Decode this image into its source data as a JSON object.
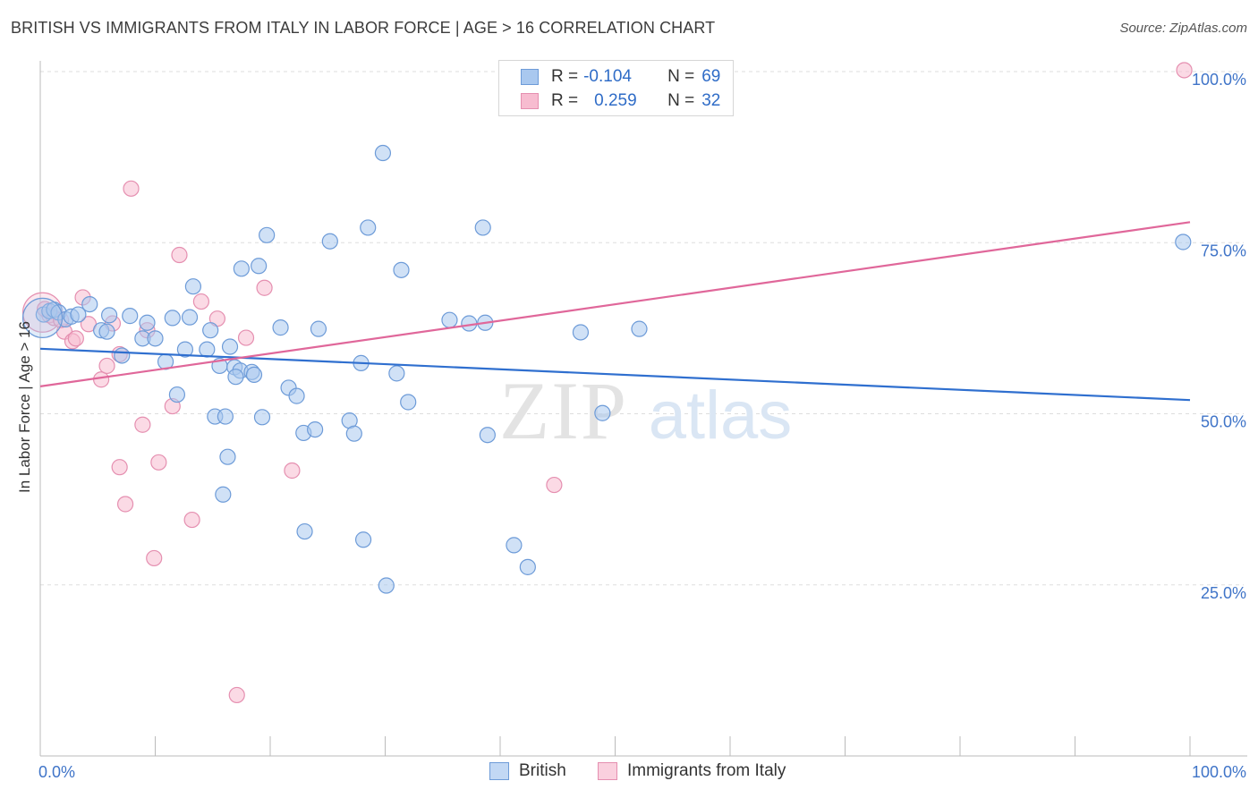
{
  "title": "BRITISH VS IMMIGRANTS FROM ITALY IN LABOR FORCE | AGE > 16 CORRELATION CHART",
  "source": "Source: ZipAtlas.com",
  "watermark": {
    "zip": "ZIP",
    "atlas": "atlas"
  },
  "colors": {
    "blue_fill": "#a9c8ef",
    "blue_stroke": "#6d9bd8",
    "blue_line": "#2f6fcf",
    "pink_fill": "#f7bcd0",
    "pink_stroke": "#e58fb0",
    "pink_line": "#e0679a",
    "tick_label": "#3f74c8",
    "grid": "#dddddd"
  },
  "legend": {
    "rows": [
      {
        "r_label": "R =",
        "r_value": "-0.104",
        "n_label": "N =",
        "n_value": "69"
      },
      {
        "r_label": "R =",
        "r_value": "0.259",
        "n_label": "N =",
        "n_value": "32"
      }
    ]
  },
  "chart_data": {
    "type": "scatter",
    "ylabel": "In Labor Force | Age > 16",
    "xlim": [
      0,
      100
    ],
    "ylim": [
      0,
      100
    ],
    "x_tick_labels": [
      "0.0%",
      "100.0%"
    ],
    "y_ticks": [
      25,
      50,
      75,
      100
    ],
    "y_tick_labels": [
      "25.0%",
      "50.0%",
      "75.0%",
      "100.0%"
    ],
    "series": [
      {
        "name": "British",
        "color": "#a9c8ef",
        "trend": {
          "x": [
            0,
            100
          ],
          "y": [
            59.5,
            52.0
          ]
        },
        "points": [
          [
            0.3,
            64.5
          ],
          [
            0.8,
            65.0
          ],
          [
            1.2,
            65.2
          ],
          [
            1.6,
            64.8
          ],
          [
            2.2,
            63.8
          ],
          [
            2.7,
            64.2
          ],
          [
            3.3,
            64.5
          ],
          [
            4.3,
            66.0
          ],
          [
            5.3,
            62.2
          ],
          [
            5.8,
            62.0
          ],
          [
            6.0,
            64.4
          ],
          [
            7.1,
            58.5
          ],
          [
            7.8,
            64.3
          ],
          [
            8.9,
            61.0
          ],
          [
            9.3,
            63.3
          ],
          [
            10.0,
            61.0
          ],
          [
            10.9,
            57.6
          ],
          [
            11.5,
            64.0
          ],
          [
            11.9,
            52.8
          ],
          [
            12.6,
            59.4
          ],
          [
            13.0,
            64.1
          ],
          [
            13.3,
            68.6
          ],
          [
            14.5,
            59.4
          ],
          [
            14.8,
            62.2
          ],
          [
            15.2,
            49.6
          ],
          [
            15.6,
            57.0
          ],
          [
            16.5,
            59.8
          ],
          [
            16.9,
            56.8
          ],
          [
            17.4,
            56.3
          ],
          [
            15.9,
            38.2
          ],
          [
            16.3,
            43.7
          ],
          [
            16.1,
            49.6
          ],
          [
            17.0,
            55.4
          ],
          [
            17.5,
            71.2
          ],
          [
            18.4,
            56.1
          ],
          [
            18.6,
            55.7
          ],
          [
            19.0,
            71.6
          ],
          [
            19.3,
            49.5
          ],
          [
            19.7,
            76.1
          ],
          [
            20.9,
            62.6
          ],
          [
            21.6,
            53.8
          ],
          [
            22.3,
            52.6
          ],
          [
            22.9,
            47.2
          ],
          [
            23.0,
            32.8
          ],
          [
            23.9,
            47.7
          ],
          [
            24.2,
            62.4
          ],
          [
            25.2,
            75.2
          ],
          [
            26.9,
            49.0
          ],
          [
            27.3,
            47.1
          ],
          [
            27.9,
            57.4
          ],
          [
            28.5,
            77.2
          ],
          [
            28.1,
            31.6
          ],
          [
            29.8,
            88.1
          ],
          [
            30.1,
            24.9
          ],
          [
            31.0,
            55.9
          ],
          [
            31.4,
            71.0
          ],
          [
            32.0,
            51.7
          ],
          [
            35.6,
            63.7
          ],
          [
            37.3,
            63.2
          ],
          [
            38.5,
            77.2
          ],
          [
            38.7,
            63.3
          ],
          [
            38.9,
            46.9
          ],
          [
            41.2,
            30.8
          ],
          [
            42.4,
            27.6
          ],
          [
            47.0,
            61.9
          ],
          [
            48.9,
            50.1
          ],
          [
            52.1,
            62.4
          ],
          [
            99.4,
            75.1
          ],
          [
            0.2,
            64.0
          ]
        ]
      },
      {
        "name": "Immigrants from Italy",
        "color": "#f7bcd0",
        "trend": {
          "x": [
            0,
            100
          ],
          "y": [
            54.0,
            78.0
          ]
        },
        "points": [
          [
            0.2,
            64.8
          ],
          [
            0.8,
            64.4
          ],
          [
            1.2,
            64.0
          ],
          [
            2.1,
            62.0
          ],
          [
            2.8,
            60.6
          ],
          [
            3.1,
            61.0
          ],
          [
            3.7,
            67.0
          ],
          [
            4.2,
            63.1
          ],
          [
            5.3,
            55.0
          ],
          [
            5.8,
            57.0
          ],
          [
            6.3,
            63.2
          ],
          [
            6.9,
            58.7
          ],
          [
            6.9,
            42.2
          ],
          [
            7.4,
            36.8
          ],
          [
            7.9,
            82.9
          ],
          [
            8.9,
            48.4
          ],
          [
            9.3,
            62.2
          ],
          [
            9.9,
            28.9
          ],
          [
            10.3,
            42.9
          ],
          [
            11.5,
            51.1
          ],
          [
            12.1,
            73.2
          ],
          [
            13.2,
            34.5
          ],
          [
            14.0,
            66.4
          ],
          [
            15.4,
            63.9
          ],
          [
            17.1,
            8.9
          ],
          [
            17.9,
            61.1
          ],
          [
            19.5,
            68.4
          ],
          [
            21.9,
            41.7
          ],
          [
            44.7,
            39.6
          ],
          [
            99.5,
            100.2
          ],
          [
            0.4,
            65.3
          ],
          [
            1.8,
            63.7
          ]
        ]
      }
    ]
  }
}
